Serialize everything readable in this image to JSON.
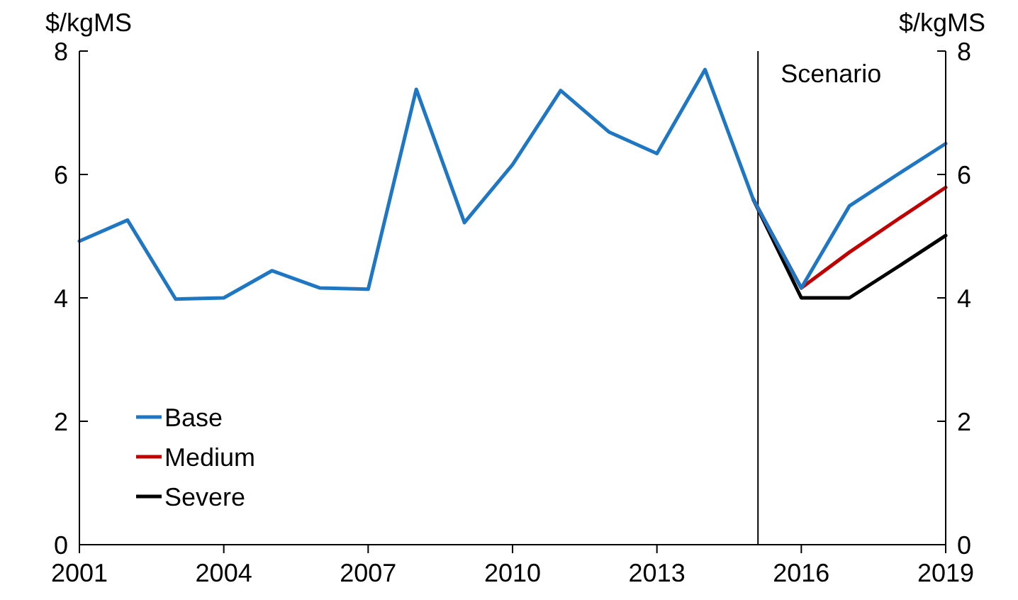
{
  "chart_data": {
    "type": "line",
    "ylabel": "$/kgMS",
    "y2label": "$/kgMS",
    "x": [
      2001,
      2002,
      2003,
      2004,
      2005,
      2006,
      2007,
      2008,
      2009,
      2010,
      2011,
      2012,
      2013,
      2014,
      2015,
      2016,
      2017,
      2018,
      2019
    ],
    "series": [
      {
        "name": "Base",
        "color": "#1f77c4",
        "values": [
          4.92,
          5.26,
          3.98,
          4.0,
          4.44,
          4.16,
          4.14,
          7.38,
          5.22,
          6.16,
          7.36,
          6.69,
          6.34,
          7.7,
          5.6,
          4.16,
          5.49,
          6.0,
          6.5
        ]
      },
      {
        "name": "Medium",
        "color": "#c00000",
        "values": [
          null,
          null,
          null,
          null,
          null,
          null,
          null,
          null,
          null,
          null,
          null,
          null,
          null,
          null,
          5.6,
          4.16,
          4.74,
          5.27,
          5.79
        ]
      },
      {
        "name": "Severe",
        "color": "#000000",
        "values": [
          null,
          null,
          null,
          null,
          null,
          null,
          null,
          null,
          null,
          null,
          null,
          null,
          null,
          null,
          5.6,
          4.0,
          4.0,
          4.5,
          5.01
        ]
      }
    ],
    "xlim": [
      2001,
      2019
    ],
    "xticks": [
      2001,
      2004,
      2007,
      2010,
      2013,
      2016,
      2019
    ],
    "ylim": [
      0,
      8
    ],
    "yticks": [
      0,
      2,
      4,
      6,
      8
    ],
    "y2lim": [
      0,
      8
    ],
    "y2ticks": [
      0,
      2,
      4,
      6,
      8
    ],
    "ref_lines": [
      {
        "axis": "x",
        "value": 2015.1,
        "label": "Scenario",
        "color": "#000000"
      }
    ],
    "grid": false,
    "legend": "bottom left",
    "marker": "none",
    "line_style": "solid"
  }
}
